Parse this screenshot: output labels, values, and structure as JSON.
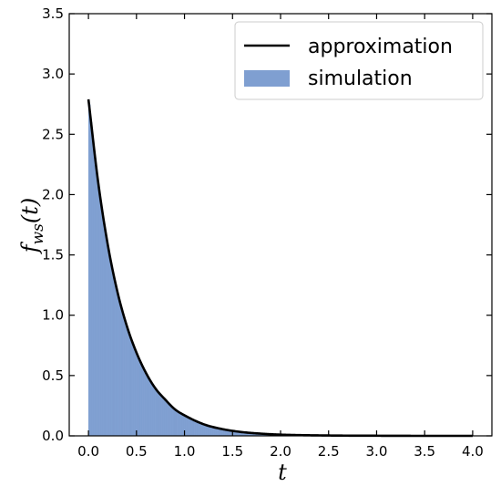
{
  "chart_data": {
    "type": "area",
    "title": "",
    "xlabel": "t",
    "ylabel": {
      "base": "f",
      "subscript": "ws",
      "suffix": "(t)"
    },
    "xlim": [
      -0.2,
      4.2
    ],
    "ylim": [
      0,
      3.5
    ],
    "xticks": [
      "0.0",
      "0.5",
      "1.0",
      "1.5",
      "2.0",
      "2.5",
      "3.0",
      "3.5",
      "4.0"
    ],
    "yticks": [
      "0.0",
      "0.5",
      "1.0",
      "1.5",
      "2.0",
      "2.5",
      "3.0",
      "3.5"
    ],
    "grid": false,
    "legend_position": "top-right",
    "series": [
      {
        "name": "approximation",
        "kind": "line",
        "color": "#000000",
        "x": [
          0.0,
          0.1,
          0.2,
          0.3,
          0.4,
          0.5,
          0.6,
          0.7,
          0.8,
          0.9,
          1.0,
          1.2,
          1.4,
          1.6,
          1.8,
          2.0,
          2.5,
          3.0,
          3.5,
          4.0
        ],
        "y": [
          2.79,
          2.11,
          1.59,
          1.2,
          0.91,
          0.69,
          0.52,
          0.39,
          0.3,
          0.22,
          0.17,
          0.096,
          0.055,
          0.031,
          0.018,
          0.01,
          0.003,
          0.001,
          0.0,
          0.0
        ]
      },
      {
        "name": "simulation",
        "kind": "histogram",
        "color": "#7f9fd1",
        "x": [
          0.0,
          0.1,
          0.2,
          0.3,
          0.4,
          0.5,
          0.6,
          0.7,
          0.8,
          0.9,
          1.0,
          1.2,
          1.4,
          1.6,
          1.8,
          2.0,
          2.5,
          3.0,
          3.5,
          4.0
        ],
        "y": [
          2.82,
          2.1,
          1.58,
          1.19,
          0.9,
          0.68,
          0.51,
          0.39,
          0.29,
          0.22,
          0.17,
          0.095,
          0.054,
          0.031,
          0.018,
          0.01,
          0.003,
          0.001,
          0.0,
          0.0
        ]
      }
    ]
  }
}
